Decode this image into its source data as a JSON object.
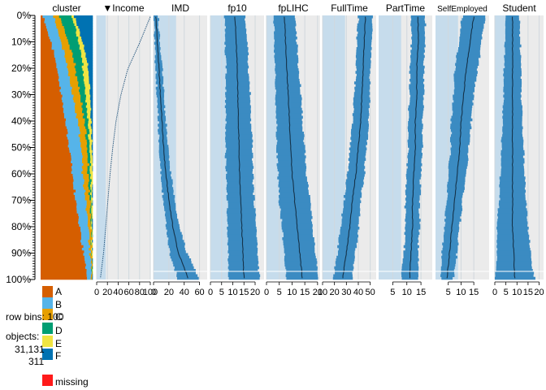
{
  "chart_data": {
    "type": "tableplot",
    "sort_indicator": "▼",
    "sorted_by": "Income",
    "row_axis_ticks": [
      "0%",
      "10%",
      "20%",
      "30%",
      "40%",
      "50%",
      "60%",
      "70%",
      "80%",
      "90%",
      "100%"
    ],
    "bins": 100,
    "legend": {
      "row_bins_label": "row bins:",
      "row_bins_value": "100",
      "objects_label": "objects:",
      "objects_value": "31,131",
      "bin_size_value": "311",
      "missing_label": "missing",
      "missing_color": "#ff1a1a"
    },
    "cluster": {
      "title": "cluster",
      "categories": [
        {
          "name": "A",
          "color": "#d55e00"
        },
        {
          "name": "B",
          "color": "#56b4e9"
        },
        {
          "name": "C",
          "color": "#e69f00"
        },
        {
          "name": "D",
          "color": "#009e73"
        },
        {
          "name": "E",
          "color": "#f0e442"
        },
        {
          "name": "F",
          "color": "#0072b2"
        }
      ],
      "proportions_top_to_bottom": {
        "A": [
          0.05,
          0.2,
          0.32,
          0.4,
          0.47,
          0.55,
          0.62,
          0.68,
          0.75,
          0.82,
          0.9
        ],
        "B": [
          0.2,
          0.2,
          0.2,
          0.22,
          0.24,
          0.23,
          0.2,
          0.2,
          0.17,
          0.13,
          0.08
        ],
        "C": [
          0.12,
          0.14,
          0.15,
          0.15,
          0.13,
          0.11,
          0.1,
          0.08,
          0.05,
          0.03,
          0.01
        ],
        "D": [
          0.23,
          0.2,
          0.15,
          0.1,
          0.07,
          0.05,
          0.04,
          0.02,
          0.01,
          0.0,
          0.0
        ],
        "E": [
          0.05,
          0.08,
          0.1,
          0.09,
          0.06,
          0.05,
          0.04,
          0.02,
          0.02,
          0.01,
          0.0
        ],
        "F": [
          0.35,
          0.18,
          0.08,
          0.04,
          0.03,
          0.01,
          0.0,
          0.0,
          0.0,
          0.0,
          0.0
        ]
      }
    },
    "variables": [
      {
        "name": "Income",
        "ticks": [
          "0",
          "20",
          "40",
          "60",
          "80",
          "100"
        ],
        "xlim": [
          0,
          100
        ],
        "tick_values": [
          0,
          20,
          40,
          60,
          80,
          100
        ],
        "mean_profile": [
          100,
          80,
          58,
          45,
          36,
          30,
          25,
          21,
          17,
          13,
          7
        ],
        "spread_profile": [
          0,
          0,
          0,
          0,
          0,
          0,
          0,
          0,
          0,
          0,
          0
        ]
      },
      {
        "name": "IMD",
        "ticks": [
          "0",
          "20",
          "40",
          "60"
        ],
        "xlim": [
          0,
          70
        ],
        "tick_values": [
          0,
          20,
          40,
          60
        ],
        "mean_profile": [
          3,
          5,
          7,
          9,
          11,
          13,
          16,
          20,
          25,
          32,
          45
        ],
        "spread_profile": [
          3,
          3.5,
          4,
          4.5,
          5,
          5.5,
          6.5,
          7.5,
          9,
          11,
          14
        ]
      },
      {
        "name": "fp10",
        "ticks": [
          "0",
          "5",
          "10",
          "15",
          "20"
        ],
        "xlim": [
          0,
          24
        ],
        "tick_values": [
          0,
          5,
          10,
          15,
          20
        ],
        "mean_profile": [
          11,
          11.5,
          12,
          12.3,
          12.5,
          12.8,
          13,
          13.5,
          14,
          14.5,
          15
        ],
        "spread_profile": [
          4.5,
          5,
          5,
          5.5,
          5.5,
          6,
          6,
          6,
          6.5,
          6.5,
          7
        ]
      },
      {
        "name": "fpLIHC",
        "ticks": [
          "0",
          "5",
          "10",
          "15",
          "20"
        ],
        "xlim": [
          0,
          21
        ],
        "tick_values": [
          0,
          5,
          10,
          15,
          20
        ],
        "mean_profile": [
          7,
          7.5,
          8,
          8.5,
          9,
          9.5,
          10,
          11,
          12,
          13,
          14
        ],
        "spread_profile": [
          4,
          4.5,
          4.5,
          5,
          5,
          5.5,
          5.5,
          6,
          6,
          6,
          6.5
        ]
      },
      {
        "name": "FullTime",
        "ticks": [
          "10",
          "20",
          "30",
          "40",
          "50"
        ],
        "xlim": [
          10,
          55
        ],
        "tick_values": [
          10,
          20,
          30,
          40,
          50
        ],
        "mean_profile": [
          46,
          45,
          44,
          43,
          42,
          40,
          38,
          35,
          33,
          30,
          27
        ],
        "spread_profile": [
          6,
          6,
          6,
          6.5,
          6.5,
          7,
          7,
          7,
          7.5,
          7.5,
          8
        ]
      },
      {
        "name": "PartTime",
        "ticks": [
          "5",
          "10",
          "15"
        ],
        "xlim": [
          0,
          19
        ],
        "tick_values": [
          5,
          10,
          15
        ],
        "mean_profile": [
          14,
          14,
          13.5,
          13.5,
          13,
          13,
          12.5,
          12,
          12,
          11.5,
          11
        ],
        "spread_profile": [
          2.5,
          2.5,
          2.5,
          2.5,
          2.5,
          2.5,
          2.5,
          2.5,
          2.5,
          2.5,
          3
        ]
      },
      {
        "name": "SelfEmployed",
        "ticks": [
          "5",
          "10",
          "15"
        ],
        "xlim": [
          0,
          21
        ],
        "tick_values": [
          5,
          10,
          15
        ],
        "mean_profile": [
          15,
          13.5,
          12,
          11,
          10,
          9.5,
          8.5,
          7.5,
          6.5,
          5.5,
          4.5
        ],
        "spread_profile": [
          4.5,
          4.5,
          4.5,
          4,
          4,
          3.5,
          3.5,
          3,
          3,
          3,
          2.5
        ]
      },
      {
        "name": "Student",
        "ticks": [
          "0",
          "5",
          "10",
          "15",
          "20"
        ],
        "xlim": [
          0,
          22
        ],
        "tick_values": [
          0,
          5,
          10,
          15,
          20
        ],
        "mean_profile": [
          8,
          8,
          8,
          8,
          8,
          8,
          8,
          8,
          8,
          8.5,
          9
        ],
        "spread_profile": [
          3,
          3.5,
          4,
          4,
          4.5,
          5,
          5.5,
          6,
          7,
          7.5,
          9
        ]
      }
    ]
  }
}
